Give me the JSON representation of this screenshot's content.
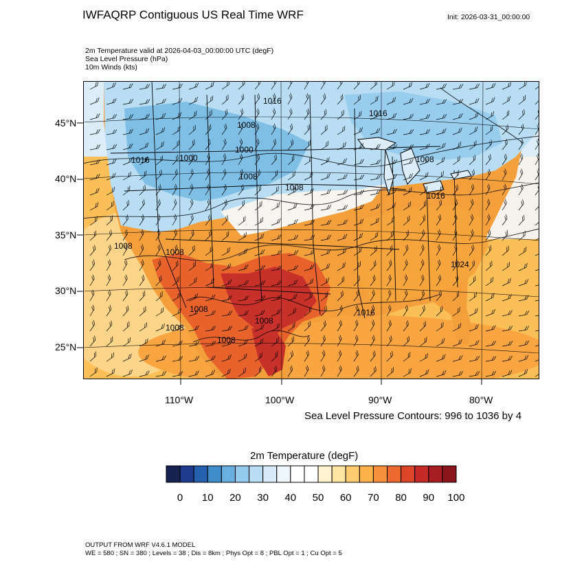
{
  "header": {
    "title": "IWFAQRP Contiguous US Real Time WRF",
    "init": "Init: 2026-03-31_00:00:00"
  },
  "fields": {
    "temperature": "2m Temperature valid at 2026-04-03_00:00:00 UTC   (degF)",
    "pressure": "Sea Level Pressure   (hPa)",
    "winds": "10m Winds   (kts)"
  },
  "map": {
    "lat_labels": [
      "45°N",
      "40°N",
      "35°N",
      "30°N",
      "25°N"
    ],
    "lon_labels": [
      "110°W",
      "100°W",
      "90°W",
      "80°W"
    ],
    "pressure_labels": [
      "1016",
      "1016",
      "1008",
      "1000",
      "1016",
      "1008",
      "1000",
      "1008",
      "1008",
      "1016",
      "1008",
      "1008",
      "1024",
      "1008",
      "1016",
      "1008",
      "1008",
      "1008"
    ],
    "colors": {
      "ocean": "#fbbf57",
      "cold": "#7fbfe6",
      "cool": "#c9e6f5",
      "neutral": "#f7f5ef",
      "warm": "#f6a43c",
      "hot": "#e8622c",
      "hottest": "#c8302a"
    }
  },
  "pressure_caption": "Sea Level Pressure Contours: 996 to 1036 by 4",
  "colorbar": {
    "title": "2m Temperature  (degF)",
    "labels": [
      "0",
      "10",
      "20",
      "30",
      "40",
      "50",
      "60",
      "70",
      "80",
      "90",
      "100"
    ],
    "colors": [
      "#162250",
      "#1e3a8c",
      "#2661b0",
      "#3e8cc8",
      "#68b0df",
      "#92c9ec",
      "#b9def4",
      "#d7ecf8",
      "#eef7fb",
      "#ffffff",
      "#ffffff",
      "#fef4d2",
      "#fde6a3",
      "#fdcb70",
      "#fbb24a",
      "#f6913c",
      "#ec6a30",
      "#dc4527",
      "#c52a26",
      "#a81d22",
      "#8a151b"
    ]
  },
  "footer": {
    "line1": "OUTPUT FROM WRF V4.6.1 MODEL",
    "line2": "WE = 580 ; SN = 380 ; Levels = 38 ; Dis = 8km ; Phys Opt = 8 ; PBL Opt = 1 ; Cu Opt = 5"
  }
}
